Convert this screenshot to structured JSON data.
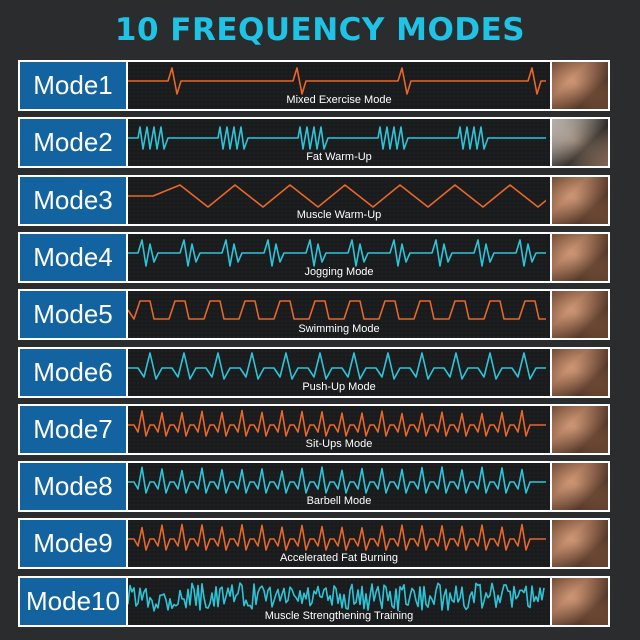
{
  "title": "10 FREQUENCY MODES",
  "colors": {
    "orange": "#e8672a",
    "cyan": "#2ec4d8",
    "label_bg": "#12639f",
    "title": "#1ec3e6"
  },
  "modes": [
    {
      "label": "Mode1",
      "caption": "Mixed Exercise Mode",
      "wave_color": "orange",
      "pattern": "sparse-spikes",
      "photo": "legs-photo"
    },
    {
      "label": "Mode2",
      "caption": "Fat Warm-Up",
      "wave_color": "cyan",
      "pattern": "burst-groups",
      "photo": "glutes-photo"
    },
    {
      "label": "Mode3",
      "caption": "Muscle Warm-Up",
      "wave_color": "orange",
      "pattern": "triangle",
      "photo": "abs-photo"
    },
    {
      "label": "Mode4",
      "caption": "Jogging Mode",
      "wave_color": "cyan",
      "pattern": "pulse-pairs",
      "photo": "back-photo"
    },
    {
      "label": "Mode5",
      "caption": "Swimming Mode",
      "wave_color": "orange",
      "pattern": "square-steps",
      "photo": "arms-photo"
    },
    {
      "label": "Mode6",
      "caption": "Push-Up Mode",
      "wave_color": "cyan",
      "pattern": "heartbeat",
      "photo": "pushup-photo"
    },
    {
      "label": "Mode7",
      "caption": "Sit-Ups Mode",
      "wave_color": "orange",
      "pattern": "dense-heartbeat",
      "photo": "sixpack-photo"
    },
    {
      "label": "Mode8",
      "caption": "Barbell Mode",
      "wave_color": "cyan",
      "pattern": "dense-heartbeat",
      "photo": "chest-photo"
    },
    {
      "label": "Mode9",
      "caption": "Accelerated Fat Burning",
      "wave_color": "orange",
      "pattern": "dense-heartbeat",
      "photo": "abs2-photo"
    },
    {
      "label": "Mode10",
      "caption": "Muscle Strengthening Training",
      "wave_color": "cyan",
      "pattern": "noise",
      "photo": "core-photo"
    }
  ]
}
